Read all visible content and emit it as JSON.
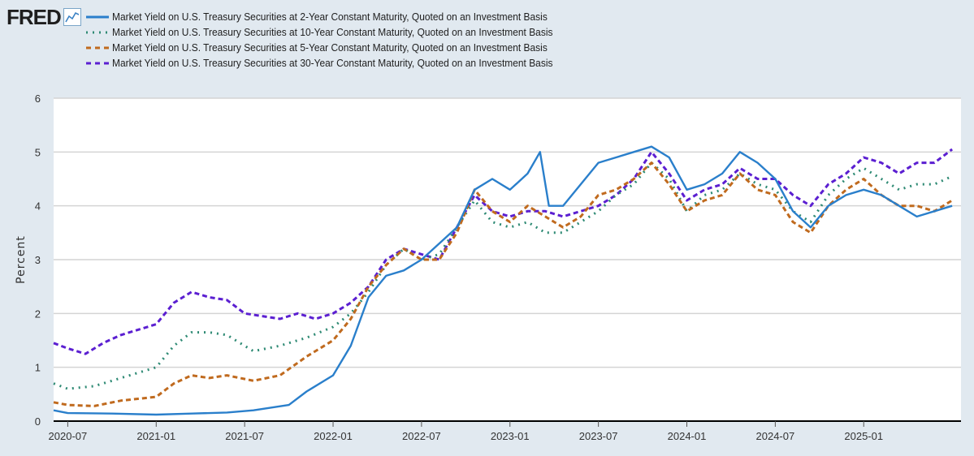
{
  "header": {
    "logo_text": "FRED",
    "logo_icon": "fred-line-graph-icon"
  },
  "chart_data": {
    "type": "line",
    "title": "",
    "xlabel": "",
    "ylabel": "Percent",
    "ylim": [
      0,
      6
    ],
    "yticks": [
      0,
      1,
      2,
      3,
      4,
      5,
      6
    ],
    "x_range": [
      2020.42,
      2025.55
    ],
    "xticks": [
      {
        "label": "2020-07",
        "t": 2020.5
      },
      {
        "label": "2021-01",
        "t": 2021.0
      },
      {
        "label": "2021-07",
        "t": 2021.5
      },
      {
        "label": "2022-01",
        "t": 2022.0
      },
      {
        "label": "2022-07",
        "t": 2022.5
      },
      {
        "label": "2023-01",
        "t": 2023.0
      },
      {
        "label": "2023-07",
        "t": 2023.5
      },
      {
        "label": "2024-01",
        "t": 2024.0
      },
      {
        "label": "2024-07",
        "t": 2024.5
      },
      {
        "label": "2025-01",
        "t": 2025.0
      }
    ],
    "grid": true,
    "legend_position": "top-left",
    "series": [
      {
        "name": "Market Yield on U.S. Treasury Securities at 2-Year Constant Maturity, Quoted on an Investment Basis",
        "color": "#2a7fcb",
        "style": "solid",
        "points": [
          [
            2020.42,
            0.2
          ],
          [
            2020.5,
            0.15
          ],
          [
            2020.75,
            0.14
          ],
          [
            2021.0,
            0.12
          ],
          [
            2021.2,
            0.14
          ],
          [
            2021.4,
            0.16
          ],
          [
            2021.55,
            0.2
          ],
          [
            2021.75,
            0.3
          ],
          [
            2021.85,
            0.55
          ],
          [
            2022.0,
            0.85
          ],
          [
            2022.1,
            1.4
          ],
          [
            2022.2,
            2.3
          ],
          [
            2022.3,
            2.7
          ],
          [
            2022.4,
            2.8
          ],
          [
            2022.5,
            3.0
          ],
          [
            2022.6,
            3.3
          ],
          [
            2022.7,
            3.6
          ],
          [
            2022.8,
            4.3
          ],
          [
            2022.9,
            4.5
          ],
          [
            2023.0,
            4.3
          ],
          [
            2023.1,
            4.6
          ],
          [
            2023.17,
            5.0
          ],
          [
            2023.22,
            4.0
          ],
          [
            2023.3,
            4.0
          ],
          [
            2023.4,
            4.4
          ],
          [
            2023.5,
            4.8
          ],
          [
            2023.6,
            4.9
          ],
          [
            2023.7,
            5.0
          ],
          [
            2023.8,
            5.1
          ],
          [
            2023.9,
            4.9
          ],
          [
            2024.0,
            4.3
          ],
          [
            2024.1,
            4.4
          ],
          [
            2024.2,
            4.6
          ],
          [
            2024.3,
            5.0
          ],
          [
            2024.4,
            4.8
          ],
          [
            2024.5,
            4.5
          ],
          [
            2024.6,
            3.9
          ],
          [
            2024.7,
            3.6
          ],
          [
            2024.8,
            4.0
          ],
          [
            2024.9,
            4.2
          ],
          [
            2025.0,
            4.3
          ],
          [
            2025.1,
            4.2
          ],
          [
            2025.2,
            4.0
          ],
          [
            2025.3,
            3.8
          ],
          [
            2025.4,
            3.9
          ],
          [
            2025.5,
            4.0
          ]
        ]
      },
      {
        "name": "Market Yield on U.S. Treasury Securities at 10-Year Constant Maturity, Quoted on an Investment Basis",
        "color": "#2e8a74",
        "style": "dotted",
        "points": [
          [
            2020.42,
            0.7
          ],
          [
            2020.5,
            0.6
          ],
          [
            2020.65,
            0.65
          ],
          [
            2020.8,
            0.8
          ],
          [
            2021.0,
            1.0
          ],
          [
            2021.1,
            1.4
          ],
          [
            2021.2,
            1.65
          ],
          [
            2021.3,
            1.65
          ],
          [
            2021.4,
            1.6
          ],
          [
            2021.55,
            1.3
          ],
          [
            2021.7,
            1.4
          ],
          [
            2021.85,
            1.55
          ],
          [
            2022.0,
            1.75
          ],
          [
            2022.1,
            2.0
          ],
          [
            2022.2,
            2.4
          ],
          [
            2022.3,
            2.9
          ],
          [
            2022.4,
            3.2
          ],
          [
            2022.5,
            3.0
          ],
          [
            2022.6,
            3.1
          ],
          [
            2022.7,
            3.6
          ],
          [
            2022.8,
            4.1
          ],
          [
            2022.9,
            3.7
          ],
          [
            2023.0,
            3.6
          ],
          [
            2023.1,
            3.7
          ],
          [
            2023.2,
            3.5
          ],
          [
            2023.3,
            3.5
          ],
          [
            2023.4,
            3.7
          ],
          [
            2023.5,
            3.9
          ],
          [
            2023.6,
            4.2
          ],
          [
            2023.7,
            4.4
          ],
          [
            2023.8,
            4.8
          ],
          [
            2023.9,
            4.5
          ],
          [
            2024.0,
            3.9
          ],
          [
            2024.1,
            4.2
          ],
          [
            2024.2,
            4.3
          ],
          [
            2024.3,
            4.6
          ],
          [
            2024.4,
            4.4
          ],
          [
            2024.5,
            4.3
          ],
          [
            2024.6,
            3.9
          ],
          [
            2024.7,
            3.7
          ],
          [
            2024.8,
            4.2
          ],
          [
            2024.9,
            4.5
          ],
          [
            2025.0,
            4.7
          ],
          [
            2025.1,
            4.5
          ],
          [
            2025.2,
            4.3
          ],
          [
            2025.3,
            4.4
          ],
          [
            2025.4,
            4.4
          ],
          [
            2025.5,
            4.55
          ]
        ]
      },
      {
        "name": "Market Yield on U.S. Treasury Securities at 5-Year Constant Maturity, Quoted on an Investment Basis",
        "color": "#c06a1e",
        "style": "dashed",
        "points": [
          [
            2020.42,
            0.35
          ],
          [
            2020.5,
            0.3
          ],
          [
            2020.65,
            0.28
          ],
          [
            2020.8,
            0.38
          ],
          [
            2021.0,
            0.45
          ],
          [
            2021.1,
            0.7
          ],
          [
            2021.2,
            0.85
          ],
          [
            2021.3,
            0.8
          ],
          [
            2021.4,
            0.85
          ],
          [
            2021.55,
            0.75
          ],
          [
            2021.7,
            0.85
          ],
          [
            2021.85,
            1.2
          ],
          [
            2022.0,
            1.5
          ],
          [
            2022.1,
            1.9
          ],
          [
            2022.2,
            2.5
          ],
          [
            2022.3,
            2.9
          ],
          [
            2022.4,
            3.2
          ],
          [
            2022.5,
            3.0
          ],
          [
            2022.6,
            3.0
          ],
          [
            2022.7,
            3.5
          ],
          [
            2022.8,
            4.3
          ],
          [
            2022.9,
            3.9
          ],
          [
            2023.0,
            3.7
          ],
          [
            2023.1,
            4.0
          ],
          [
            2023.2,
            3.8
          ],
          [
            2023.3,
            3.6
          ],
          [
            2023.4,
            3.8
          ],
          [
            2023.5,
            4.2
          ],
          [
            2023.6,
            4.3
          ],
          [
            2023.7,
            4.5
          ],
          [
            2023.8,
            4.8
          ],
          [
            2023.9,
            4.4
          ],
          [
            2024.0,
            3.9
          ],
          [
            2024.1,
            4.1
          ],
          [
            2024.2,
            4.2
          ],
          [
            2024.3,
            4.6
          ],
          [
            2024.4,
            4.3
          ],
          [
            2024.5,
            4.2
          ],
          [
            2024.6,
            3.7
          ],
          [
            2024.7,
            3.5
          ],
          [
            2024.8,
            4.0
          ],
          [
            2024.9,
            4.3
          ],
          [
            2025.0,
            4.5
          ],
          [
            2025.1,
            4.2
          ],
          [
            2025.2,
            4.0
          ],
          [
            2025.3,
            4.0
          ],
          [
            2025.4,
            3.9
          ],
          [
            2025.5,
            4.1
          ]
        ]
      },
      {
        "name": "Market Yield on U.S. Treasury Securities at 30-Year Constant Maturity, Quoted on an Investment Basis",
        "color": "#5b1fd1",
        "style": "dashed",
        "points": [
          [
            2020.42,
            1.45
          ],
          [
            2020.5,
            1.35
          ],
          [
            2020.6,
            1.25
          ],
          [
            2020.7,
            1.45
          ],
          [
            2020.8,
            1.6
          ],
          [
            2021.0,
            1.8
          ],
          [
            2021.1,
            2.2
          ],
          [
            2021.2,
            2.4
          ],
          [
            2021.3,
            2.3
          ],
          [
            2021.4,
            2.25
          ],
          [
            2021.5,
            2.0
          ],
          [
            2021.6,
            1.95
          ],
          [
            2021.7,
            1.9
          ],
          [
            2021.8,
            2.0
          ],
          [
            2021.9,
            1.9
          ],
          [
            2022.0,
            2.0
          ],
          [
            2022.1,
            2.2
          ],
          [
            2022.2,
            2.5
          ],
          [
            2022.3,
            3.0
          ],
          [
            2022.4,
            3.2
          ],
          [
            2022.5,
            3.1
          ],
          [
            2022.6,
            3.0
          ],
          [
            2022.7,
            3.6
          ],
          [
            2022.8,
            4.2
          ],
          [
            2022.9,
            3.9
          ],
          [
            2023.0,
            3.8
          ],
          [
            2023.1,
            3.9
          ],
          [
            2023.2,
            3.9
          ],
          [
            2023.3,
            3.8
          ],
          [
            2023.4,
            3.9
          ],
          [
            2023.5,
            4.0
          ],
          [
            2023.6,
            4.2
          ],
          [
            2023.7,
            4.5
          ],
          [
            2023.8,
            5.0
          ],
          [
            2023.9,
            4.6
          ],
          [
            2024.0,
            4.1
          ],
          [
            2024.1,
            4.3
          ],
          [
            2024.2,
            4.4
          ],
          [
            2024.3,
            4.7
          ],
          [
            2024.4,
            4.5
          ],
          [
            2024.5,
            4.5
          ],
          [
            2024.6,
            4.2
          ],
          [
            2024.7,
            4.0
          ],
          [
            2024.8,
            4.4
          ],
          [
            2024.9,
            4.6
          ],
          [
            2025.0,
            4.9
          ],
          [
            2025.1,
            4.8
          ],
          [
            2025.2,
            4.6
          ],
          [
            2025.3,
            4.8
          ],
          [
            2025.4,
            4.8
          ],
          [
            2025.5,
            5.05
          ]
        ]
      }
    ]
  }
}
